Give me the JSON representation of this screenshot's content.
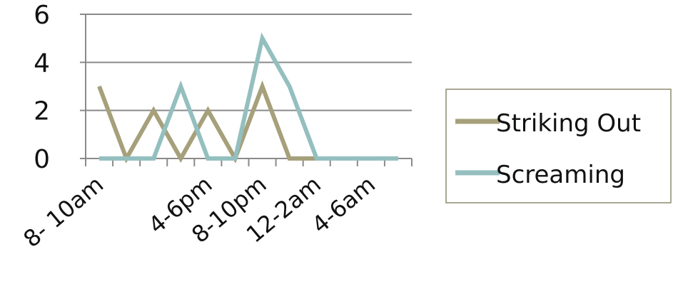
{
  "chart_data": {
    "type": "line",
    "title": "",
    "xlabel": "",
    "ylabel": "",
    "ylim": [
      0,
      6
    ],
    "yticks": [
      0,
      2,
      4,
      6
    ],
    "grid": true,
    "legend_position": "right",
    "categories": [
      "8- 10am",
      "",
      "",
      "",
      "4-6pm",
      "",
      "8-10pm",
      "",
      "12-2am",
      "",
      "4-6am",
      ""
    ],
    "series": [
      {
        "name": "Striking Out",
        "color": "#a6a07b",
        "values": [
          3,
          0,
          2,
          0,
          2,
          0,
          3,
          0,
          0,
          0,
          0,
          0
        ]
      },
      {
        "name": "Screaming",
        "color": "#94bfbf",
        "values": [
          0,
          0,
          0,
          3,
          0,
          0,
          5,
          3,
          0,
          0,
          0,
          0
        ]
      }
    ]
  }
}
